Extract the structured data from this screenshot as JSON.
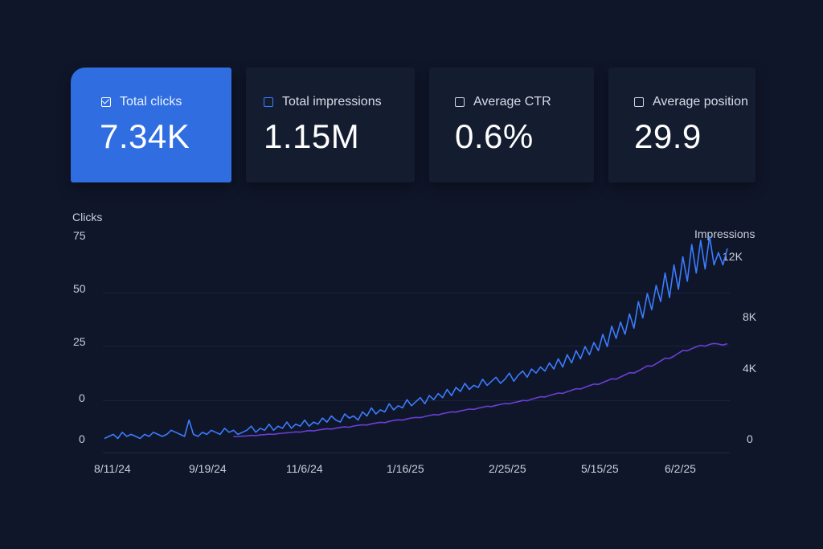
{
  "metrics": [
    {
      "label": "Total clicks",
      "value": "7.34K",
      "checked": true
    },
    {
      "label": "Total impressions",
      "value": "1.15M",
      "checked": false
    },
    {
      "label": "Average CTR",
      "value": "0.6%",
      "checked": false
    },
    {
      "label": "Average position",
      "value": "29.9",
      "checked": false
    }
  ],
  "colors": {
    "clicks": "#3b7cff",
    "impressions": "#6a3fd6",
    "active_card": "#2f6de1",
    "background": "#0f1629"
  },
  "chart_data": {
    "type": "line",
    "left_axis_title": "Clicks",
    "right_axis_title": "Impressions",
    "left_ticks": [
      "75",
      "50",
      "25",
      "0",
      "0"
    ],
    "right_ticks": [
      "12K",
      "8K",
      "4K",
      "0"
    ],
    "x_ticks": [
      "8/11/24",
      "9/19/24",
      "11/6/24",
      "1/16/25",
      "2/25/25",
      "5/15/25",
      "6/2/25"
    ],
    "series": [
      {
        "name": "Clicks",
        "axis": "left",
        "values": [
          1,
          2,
          3,
          1,
          4,
          2,
          3,
          2,
          1,
          3,
          2,
          4,
          3,
          2,
          3,
          5,
          4,
          3,
          2,
          10,
          3,
          2,
          4,
          3,
          5,
          4,
          3,
          6,
          4,
          5,
          3,
          4,
          5,
          7,
          4,
          6,
          5,
          8,
          5,
          7,
          6,
          9,
          6,
          8,
          7,
          10,
          7,
          9,
          8,
          11,
          9,
          12,
          10,
          9,
          13,
          11,
          12,
          10,
          14,
          12,
          16,
          13,
          15,
          14,
          18,
          15,
          17,
          16,
          20,
          17,
          19,
          21,
          18,
          22,
          20,
          23,
          21,
          25,
          22,
          26,
          24,
          28,
          25,
          27,
          26,
          30,
          27,
          29,
          31,
          28,
          30,
          33,
          29,
          32,
          34,
          31,
          35,
          33,
          36,
          34,
          38,
          35,
          40,
          36,
          42,
          38,
          44,
          40,
          46,
          42,
          48,
          44,
          52,
          46,
          56,
          50,
          58,
          52,
          62,
          55,
          68,
          60,
          72,
          64,
          76,
          68,
          82,
          70,
          86,
          74,
          90,
          78,
          96,
          82,
          98,
          84,
          100,
          86,
          92,
          86,
          94
        ]
      },
      {
        "name": "Impressions",
        "axis": "right",
        "values": [
          null,
          null,
          null,
          null,
          null,
          null,
          null,
          null,
          null,
          null,
          null,
          null,
          null,
          null,
          null,
          null,
          null,
          null,
          null,
          null,
          null,
          null,
          null,
          null,
          null,
          null,
          null,
          null,
          null,
          250,
          260,
          280,
          300,
          330,
          320,
          360,
          380,
          410,
          400,
          450,
          470,
          500,
          520,
          560,
          540,
          600,
          640,
          620,
          680,
          720,
          760,
          740,
          800,
          850,
          880,
          860,
          940,
          980,
          1020,
          1000,
          1080,
          1130,
          1180,
          1160,
          1240,
          1300,
          1340,
          1320,
          1400,
          1460,
          1500,
          1480,
          1560,
          1620,
          1680,
          1660,
          1740,
          1800,
          1860,
          1840,
          1920,
          1980,
          2040,
          2020,
          2100,
          2160,
          2220,
          2200,
          2280,
          2340,
          2400,
          2380,
          2460,
          2520,
          2600,
          2580,
          2680,
          2760,
          2840,
          2820,
          2920,
          3000,
          3080,
          3060,
          3160,
          3260,
          3360,
          3340,
          3460,
          3560,
          3660,
          3640,
          3760,
          3880,
          4000,
          3980,
          4120,
          4260,
          4400,
          4380,
          4520,
          4680,
          4840,
          4820,
          4980,
          5160,
          5340,
          5320,
          5480,
          5660,
          5840,
          5820,
          5960,
          6080,
          6180,
          6120,
          6240,
          6300,
          6260,
          6200,
          6280
        ]
      }
    ]
  }
}
